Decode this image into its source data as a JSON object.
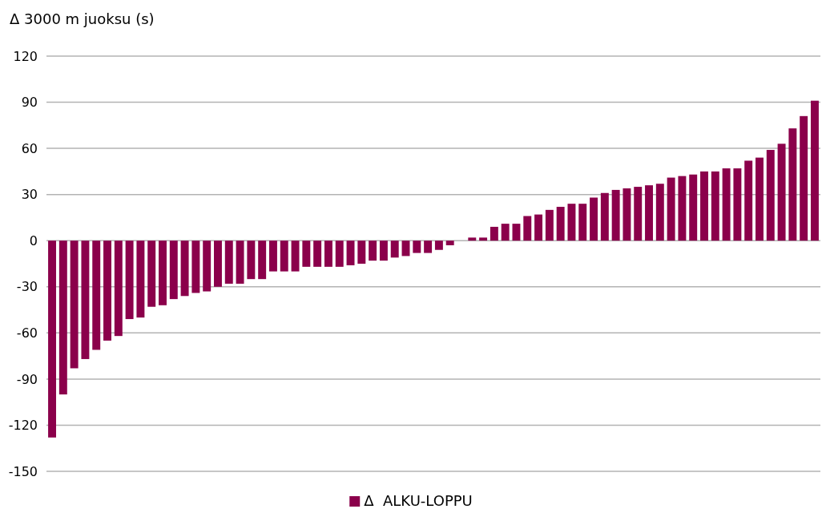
{
  "chart_data": {
    "type": "bar",
    "ylabel": "Δ 3000 m juoksu (s)",
    "categories": [
      null,
      null,
      null,
      null,
      null,
      null,
      null,
      null,
      null,
      null,
      null,
      null,
      null,
      null,
      null,
      null,
      null,
      null,
      null,
      null,
      null,
      null,
      null,
      null,
      null,
      null,
      null,
      null,
      null,
      null,
      null,
      null,
      null,
      null,
      null,
      null,
      null,
      null,
      null,
      null,
      null,
      null,
      null,
      null,
      null,
      null,
      null,
      null,
      null,
      null,
      null,
      null,
      null,
      null,
      null,
      null,
      null,
      null,
      null,
      null,
      null,
      null,
      null,
      null,
      null,
      null,
      null,
      null,
      null,
      null
    ],
    "series": [
      {
        "name": "Δ  ALKU-LOPPU",
        "color": "#8b004b",
        "values": [
          -128,
          -100,
          -83,
          -77,
          -71,
          -65,
          -62,
          -51,
          -50,
          -43,
          -42,
          -38,
          -36,
          -34,
          -33,
          -30,
          -28,
          -28,
          -25,
          -25,
          -20,
          -20,
          -20,
          -17,
          -17,
          -17,
          -17,
          -16,
          -15,
          -13,
          -13,
          -11,
          -10,
          -8,
          -8,
          -6,
          -3,
          0,
          2,
          2,
          9,
          11,
          11,
          16,
          17,
          20,
          22,
          24,
          24,
          28,
          31,
          33,
          34,
          35,
          36,
          37,
          41,
          42,
          43,
          45,
          45,
          47,
          47,
          52,
          54,
          59,
          63,
          73,
          81,
          91
        ]
      }
    ],
    "ylim": [
      -150,
      120
    ],
    "yticks": [
      -150,
      -120,
      -90,
      -60,
      -30,
      0,
      30,
      60,
      90,
      120
    ],
    "grid": "y",
    "legend": "bottom"
  }
}
